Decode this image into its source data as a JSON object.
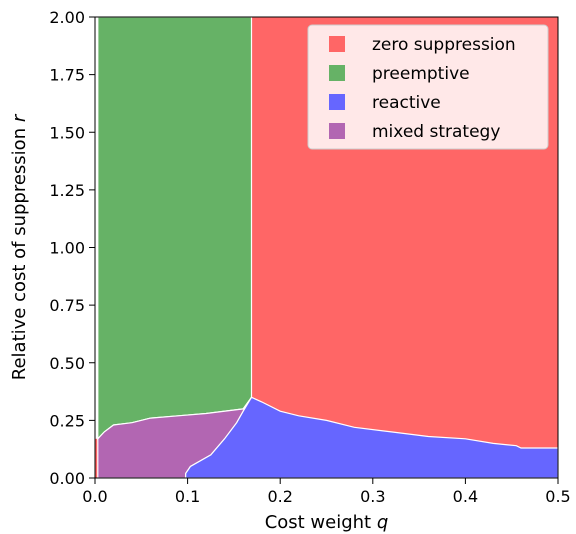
{
  "chart_data": {
    "type": "area",
    "xlabel": "Cost weight",
    "xlabel_var": "q",
    "ylabel": "Relative cost of suppression",
    "ylabel_var": "r",
    "xlim": [
      0,
      0.5
    ],
    "ylim": [
      0,
      2.0
    ],
    "x_ticks": [
      "0.0",
      "0.1",
      "0.2",
      "0.3",
      "0.4",
      "0.5"
    ],
    "y_ticks": [
      "0.00",
      "0.25",
      "0.50",
      "0.75",
      "1.00",
      "1.25",
      "1.50",
      "1.75",
      "2.00"
    ],
    "grid": false,
    "legend_position": "top-right",
    "series": [
      {
        "name": "zero suppression",
        "color": "#ff6666"
      },
      {
        "name": "preemptive",
        "color": "#66b266"
      },
      {
        "name": "reactive",
        "color": "#6666ff"
      },
      {
        "name": "mixed strategy",
        "color": "#b266b2"
      }
    ],
    "boundaries": {
      "preemptive_zero_q": 0.169,
      "preemptive_left_q": 0.003,
      "reactive_upper": [
        [
          0.098,
          0.02
        ],
        [
          0.103,
          0.05
        ],
        [
          0.125,
          0.1
        ],
        [
          0.14,
          0.17
        ],
        [
          0.153,
          0.24
        ],
        [
          0.16,
          0.29
        ],
        [
          0.169,
          0.35
        ],
        [
          0.18,
          0.33
        ],
        [
          0.2,
          0.29
        ],
        [
          0.22,
          0.27
        ],
        [
          0.25,
          0.25
        ],
        [
          0.28,
          0.22
        ],
        [
          0.32,
          0.2
        ],
        [
          0.36,
          0.18
        ],
        [
          0.4,
          0.17
        ],
        [
          0.43,
          0.15
        ],
        [
          0.455,
          0.14
        ],
        [
          0.46,
          0.13
        ],
        [
          0.5,
          0.13
        ]
      ],
      "mixed_upper": [
        [
          0.003,
          0.17
        ],
        [
          0.01,
          0.2
        ],
        [
          0.02,
          0.23
        ],
        [
          0.04,
          0.24
        ],
        [
          0.06,
          0.26
        ],
        [
          0.09,
          0.27
        ],
        [
          0.12,
          0.28
        ],
        [
          0.16,
          0.3
        ],
        [
          0.169,
          0.35
        ]
      ]
    }
  }
}
